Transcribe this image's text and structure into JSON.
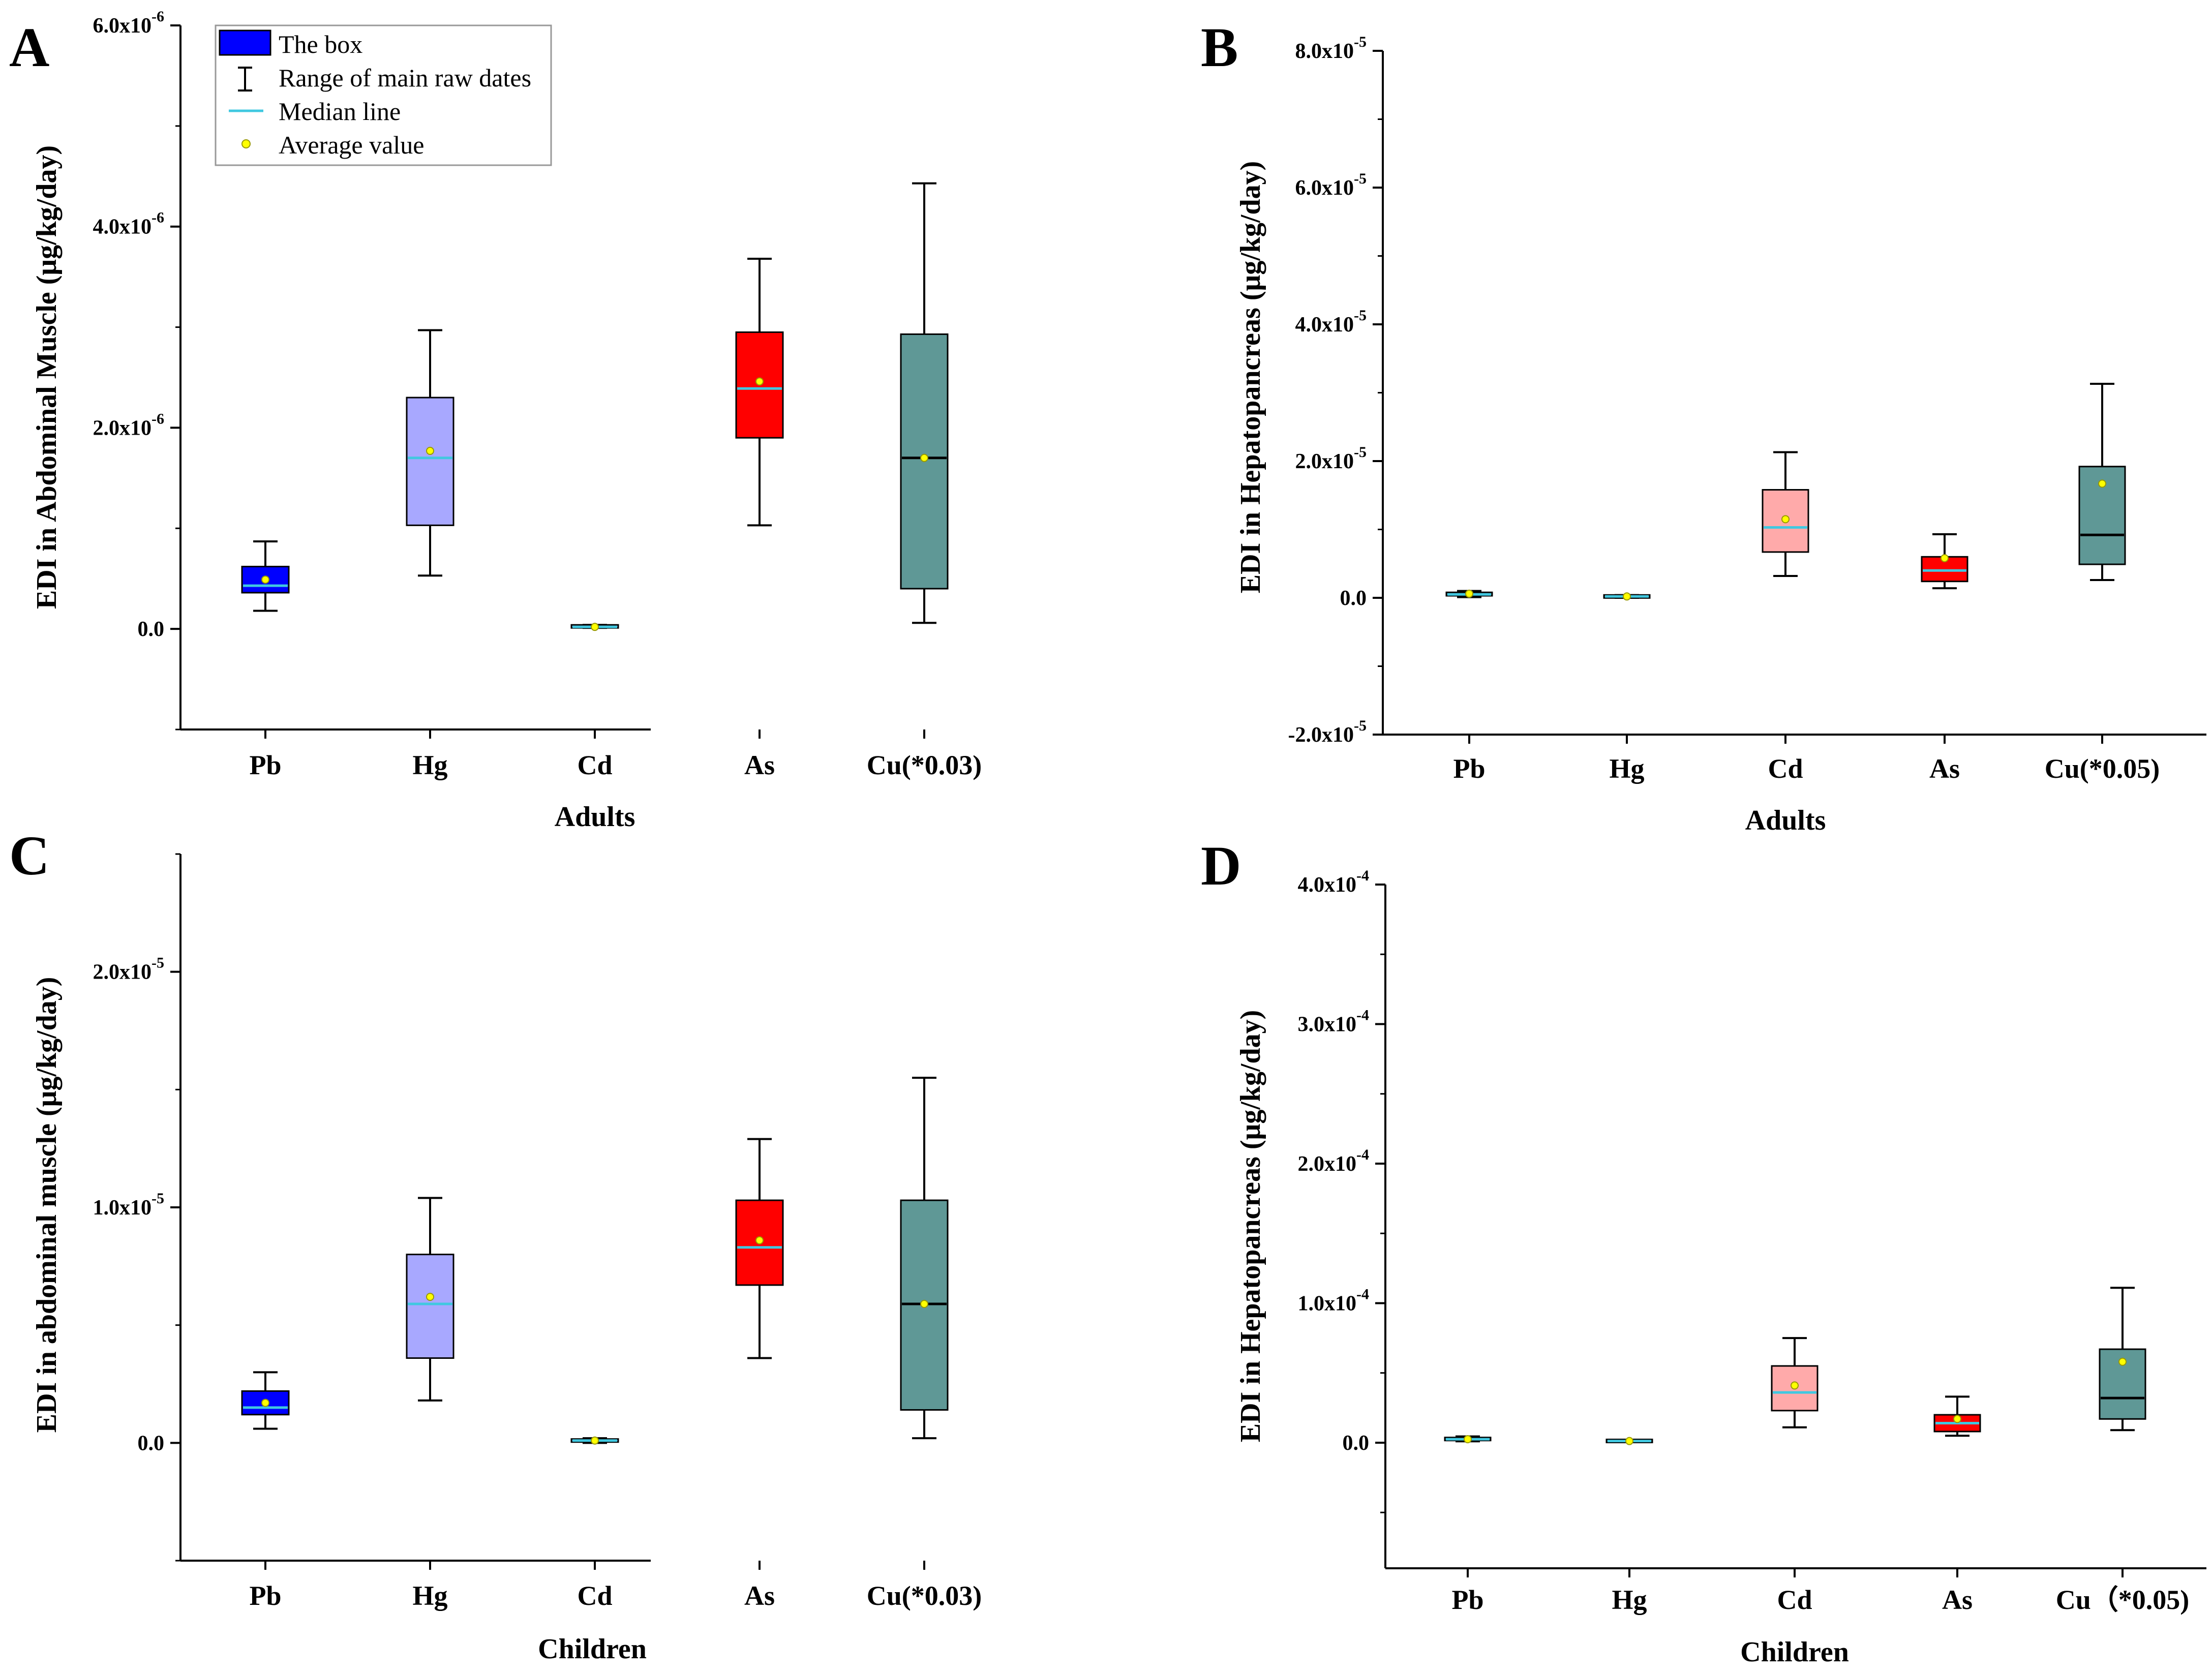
{
  "chart_data": [
    {
      "panel": "A",
      "type": "box",
      "xlabel": "Adults",
      "ylabel": "EDI in Abdominal Muscle (μg/kg/day)",
      "ylim": [
        -1e-06,
        6e-06
      ],
      "y_ticks": [
        {
          "v": 0,
          "label": "0.0"
        },
        {
          "v": 2e-06,
          "label": "2.0x10",
          "exp": "-6"
        },
        {
          "v": 4e-06,
          "label": "4.0x10",
          "exp": "-6"
        },
        {
          "v": 6e-06,
          "label": "6.0x10",
          "exp": "-6"
        }
      ],
      "categories": [
        "Pb",
        "Hg",
        "Cd",
        "As",
        "Cu(*0.03)"
      ],
      "boxes": [
        {
          "label": "Pb",
          "min": 1.8e-07,
          "q1": 3.6e-07,
          "median": 4.3e-07,
          "q3": 6.2e-07,
          "max": 8.7e-07,
          "mean": 4.9e-07,
          "color": "#0000ff",
          "median_color": "#40c8e0"
        },
        {
          "label": "Hg",
          "min": 5.3e-07,
          "q1": 1.03e-06,
          "median": 1.7e-06,
          "q3": 2.3e-06,
          "max": 2.97e-06,
          "mean": 1.77e-06,
          "color": "#a8a8ff",
          "median_color": "#40c8e0"
        },
        {
          "label": "Cd",
          "min": 1e-08,
          "q1": 2e-08,
          "median": 2e-08,
          "q3": 3e-08,
          "max": 4e-08,
          "mean": 2e-08,
          "color": "#a8a8ff",
          "median_color": "#40c8e0"
        },
        {
          "label": "As",
          "min": 1.03e-06,
          "q1": 1.9e-06,
          "median": 2.39e-06,
          "q3": 2.95e-06,
          "max": 3.68e-06,
          "mean": 2.46e-06,
          "color": "#ff0000",
          "median_color": "#40c8e0"
        },
        {
          "label": "Cu(*0.03)",
          "min": 6e-08,
          "q1": 4e-07,
          "median": 1.7e-06,
          "q3": 2.93e-06,
          "max": 4.43e-06,
          "mean": 1.7e-06,
          "color": "#5f9896",
          "median_color": "#000000"
        }
      ]
    },
    {
      "panel": "B",
      "type": "box",
      "xlabel": "Adults",
      "ylabel": "EDI in Hepatopancreas (μg/kg/day)",
      "ylim": [
        -2e-05,
        8e-05
      ],
      "y_ticks": [
        {
          "v": -2e-05,
          "label": "-2.0x10",
          "exp": "-5"
        },
        {
          "v": 0,
          "label": "0.0"
        },
        {
          "v": 2e-05,
          "label": "2.0x10",
          "exp": "-5"
        },
        {
          "v": 4e-05,
          "label": "4.0x10",
          "exp": "-5"
        },
        {
          "v": 6e-05,
          "label": "6.0x10",
          "exp": "-5"
        },
        {
          "v": 8e-05,
          "label": "8.0x10",
          "exp": "-5"
        }
      ],
      "categories": [
        "Pb",
        "Hg",
        "Cd",
        "As",
        "Cu(*0.05)"
      ],
      "boxes": [
        {
          "label": "Pb",
          "min": 1e-07,
          "q1": 3e-07,
          "median": 5e-07,
          "q3": 8e-07,
          "max": 1e-06,
          "mean": 6e-07,
          "color": "#5f9896",
          "median_color": "#40c8e0"
        },
        {
          "label": "Hg",
          "min": 0.0,
          "q1": 1e-07,
          "median": 2e-07,
          "q3": 3e-07,
          "max": 4e-07,
          "mean": 2e-07,
          "color": "#5f9896",
          "median_color": "#40c8e0"
        },
        {
          "label": "Cd",
          "min": 3.2e-06,
          "q1": 6.7e-06,
          "median": 1.03e-05,
          "q3": 1.58e-05,
          "max": 2.13e-05,
          "mean": 1.15e-05,
          "color": "#ffaaaa",
          "median_color": "#40c8e0"
        },
        {
          "label": "As",
          "min": 1.4e-06,
          "q1": 2.4e-06,
          "median": 4e-06,
          "q3": 6e-06,
          "max": 9.3e-06,
          "mean": 5.8e-06,
          "color": "#ff0000",
          "median_color": "#40c8e0"
        },
        {
          "label": "Cu(*0.05)",
          "min": 2.6e-06,
          "q1": 4.9e-06,
          "median": 9.2e-06,
          "q3": 1.92e-05,
          "max": 3.13e-05,
          "mean": 1.67e-05,
          "color": "#5f9896",
          "median_color": "#000000"
        }
      ]
    },
    {
      "panel": "C",
      "type": "box",
      "xlabel": "Children",
      "ylabel": "EDI in abdominal muscle (μg/kg/day)",
      "ylim": [
        -5e-06,
        2.5e-05
      ],
      "y_ticks": [
        {
          "v": 0,
          "label": "0.0"
        },
        {
          "v": 1e-05,
          "label": "1.0x10",
          "exp": "-5"
        },
        {
          "v": 2e-05,
          "label": "2.0x10",
          "exp": "-5"
        }
      ],
      "categories": [
        "Pb",
        "Hg",
        "Cd",
        "As",
        "Cu(*0.03)"
      ],
      "boxes": [
        {
          "label": "Pb",
          "min": 6e-07,
          "q1": 1.2e-06,
          "median": 1.5e-06,
          "q3": 2.2e-06,
          "max": 3e-06,
          "mean": 1.7e-06,
          "color": "#0000ff",
          "median_color": "#40c8e0"
        },
        {
          "label": "Hg",
          "min": 1.8e-06,
          "q1": 3.6e-06,
          "median": 5.9e-06,
          "q3": 8e-06,
          "max": 1.04e-05,
          "mean": 6.2e-06,
          "color": "#a8a8ff",
          "median_color": "#40c8e0"
        },
        {
          "label": "Cd",
          "min": 0.0,
          "q1": 5e-08,
          "median": 1e-07,
          "q3": 1.5e-07,
          "max": 2e-07,
          "mean": 1e-07,
          "color": "#a8a8ff",
          "median_color": "#40c8e0"
        },
        {
          "label": "As",
          "min": 3.6e-06,
          "q1": 6.7e-06,
          "median": 8.3e-06,
          "q3": 1.03e-05,
          "max": 1.29e-05,
          "mean": 8.6e-06,
          "color": "#ff0000",
          "median_color": "#40c8e0"
        },
        {
          "label": "Cu(*0.03)",
          "min": 2e-07,
          "q1": 1.4e-06,
          "median": 5.9e-06,
          "q3": 1.03e-05,
          "max": 1.55e-05,
          "mean": 5.9e-06,
          "color": "#5f9896",
          "median_color": "#000000"
        }
      ]
    },
    {
      "panel": "D",
      "type": "box",
      "xlabel": "Children",
      "ylabel": "EDI in Hepatopancreas (μg/kg/day)",
      "ylim": [
        -9e-05,
        0.0004
      ],
      "y_ticks": [
        {
          "v": 0,
          "label": "0.0"
        },
        {
          "v": 0.0001,
          "label": "1.0x10",
          "exp": "-4"
        },
        {
          "v": 0.0002,
          "label": "2.0x10",
          "exp": "-4"
        },
        {
          "v": 0.0003,
          "label": "3.0x10",
          "exp": "-4"
        },
        {
          "v": 0.0004,
          "label": "4.0x10",
          "exp": "-4"
        }
      ],
      "categories": [
        "Pb",
        "Hg",
        "Cd",
        "As",
        "Cu（*0.05)"
      ],
      "boxes": [
        {
          "label": "Pb",
          "min": 1e-06,
          "q1": 1.8e-06,
          "median": 2.5e-06,
          "q3": 3.5e-06,
          "max": 4.5e-06,
          "mean": 2.5e-06,
          "color": "#5f9896",
          "median_color": "#40c8e0"
        },
        {
          "label": "Hg",
          "min": 5e-07,
          "q1": 9e-07,
          "median": 1.2e-06,
          "q3": 1.6e-06,
          "max": 2e-06,
          "mean": 1.2e-06,
          "color": "#5f9896",
          "median_color": "#40c8e0"
        },
        {
          "label": "Cd",
          "min": 1.1e-05,
          "q1": 2.3e-05,
          "median": 3.6e-05,
          "q3": 5.5e-05,
          "max": 7.5e-05,
          "mean": 4.1e-05,
          "color": "#ffaaaa",
          "median_color": "#40c8e0"
        },
        {
          "label": "As",
          "min": 5e-06,
          "q1": 8e-06,
          "median": 1.4e-05,
          "q3": 2e-05,
          "max": 3.3e-05,
          "mean": 1.7e-05,
          "color": "#ff0000",
          "median_color": "#40c8e0"
        },
        {
          "label": "Cu（*0.05)",
          "min": 9e-06,
          "q1": 1.7e-05,
          "median": 3.2e-05,
          "q3": 6.7e-05,
          "max": 0.000111,
          "mean": 5.8e-05,
          "color": "#5f9896",
          "median_color": "#000000"
        }
      ]
    }
  ],
  "legend": {
    "items": [
      {
        "key": "box",
        "label": "The box"
      },
      {
        "key": "range",
        "label": "Range of main raw dates"
      },
      {
        "key": "median",
        "label": "Median line"
      },
      {
        "key": "mean",
        "label": "Average value"
      }
    ],
    "box_color": "#0000ff",
    "median_color": "#40c8e0",
    "mean_color": "#ffff00"
  },
  "colors": {
    "mean_dot": "#ffff00",
    "mean_dot_stroke": "#999900",
    "axis": "#000000"
  }
}
